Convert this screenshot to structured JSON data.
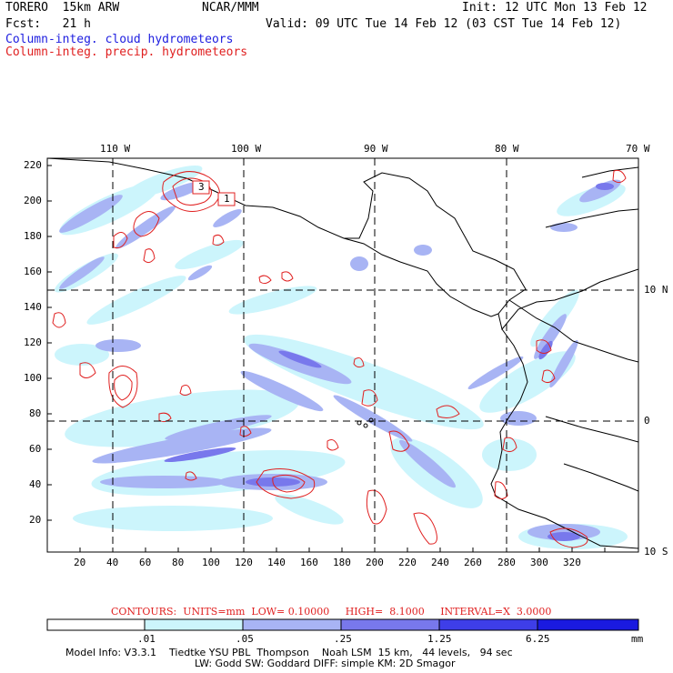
{
  "header": {
    "model": "TORERO  15km ARW",
    "org": "NCAR/MMM",
    "init": "Init: 12 UTC Mon 13 Feb 12",
    "fcst": "Fcst:   21 h",
    "valid": "Valid: 09 UTC Tue 14 Feb 12 (03 CST Tue 14 Feb 12)",
    "field1": "Column-integ. cloud hydrometeors",
    "field2": "Column-integ. precip. hydrometeors"
  },
  "map": {
    "lon_labels": [
      "110 W",
      "100 W",
      "90 W",
      "80 W",
      "70 W"
    ],
    "lat_labels": [
      "10 N",
      "0",
      "10 S"
    ],
    "y_ticks": [
      "220",
      "200",
      "180",
      "160",
      "140",
      "120",
      "100",
      "80",
      "60",
      "40",
      "20"
    ],
    "x_ticks": [
      "20",
      "40",
      "60",
      "80",
      "100",
      "120",
      "140",
      "160",
      "180",
      "200",
      "220",
      "240",
      "260",
      "280",
      "300",
      "320"
    ],
    "boxes": [
      "3",
      "1"
    ]
  },
  "contour_info": "CONTOURS:  UNITS=mm  LOW= 0.10000     HIGH=  8.1000     INTERVAL=X  3.0000",
  "colorbar": {
    "labels": [
      ".01",
      ".05",
      ".25",
      "1.25",
      "6.25"
    ],
    "unit": "mm",
    "colors": [
      "#ffffff",
      "#ccf5fc",
      "#a8b4f4",
      "#7878ec",
      "#3e3ee8",
      "#1a1ae0"
    ]
  },
  "footer": {
    "line1": "Model Info: V3.3.1    Tiedtke YSU PBL  Thompson    Noah LSM  15 km,   44 levels,   94 sec",
    "line2": "LW: Godd SW: Goddard DIFF: simple KM: 2D Smagor"
  }
}
